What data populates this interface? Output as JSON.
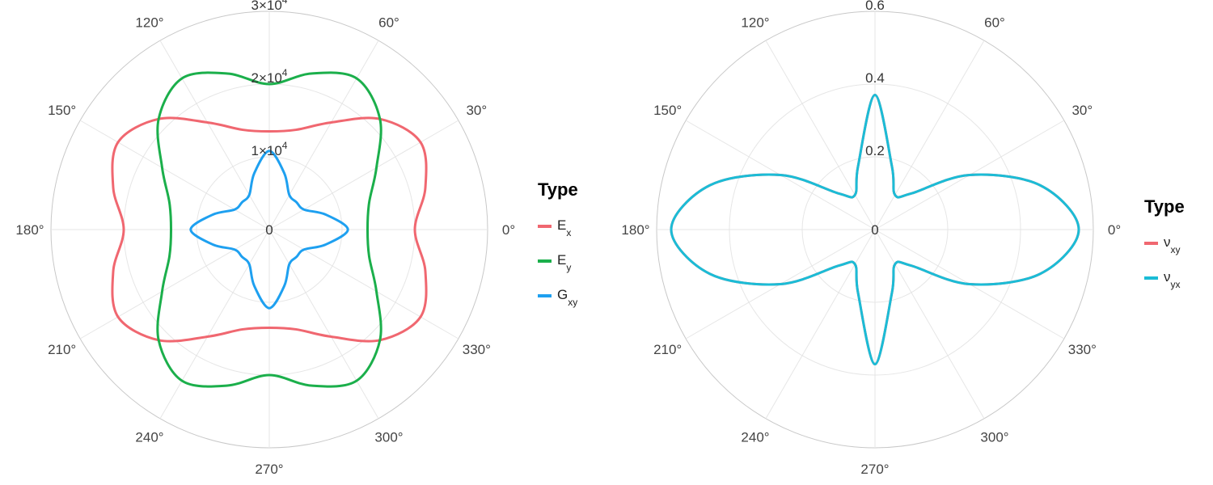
{
  "chart_data": [
    {
      "type": "line",
      "coord": "polar",
      "angle_labels": [
        "0°",
        "30°",
        "60°",
        "90°",
        "120°",
        "150°",
        "180°",
        "210°",
        "240°",
        "270°",
        "300°",
        "330°"
      ],
      "radial_ticks": [
        {
          "value": 0,
          "label": "0",
          "sup": ""
        },
        {
          "value": 10000,
          "label": "1×10",
          "sup": "4"
        },
        {
          "value": 20000,
          "label": "2×10",
          "sup": "4"
        },
        {
          "value": 30000,
          "label": "3×10",
          "sup": "4"
        }
      ],
      "rlim": [
        0,
        30000
      ],
      "grid": true,
      "legend": {
        "title": "Type",
        "position": "right",
        "entries": [
          {
            "main": "E",
            "sub": "x",
            "color": "#F06770"
          },
          {
            "main": "E",
            "sub": "y",
            "color": "#1BAF4B"
          },
          {
            "main": "G",
            "sub": "xy",
            "color": "#1EA0F0"
          }
        ]
      },
      "series": [
        {
          "name": "Ex",
          "color": "#F06770",
          "angle_deg": [
            0,
            15,
            30,
            45,
            60,
            75,
            90
          ],
          "r": [
            20000,
            22200,
            24000,
            21500,
            17000,
            14200,
            13500
          ]
        },
        {
          "name": "Ey",
          "color": "#1BAF4B",
          "angle_deg": [
            0,
            15,
            30,
            45,
            60,
            75,
            90
          ],
          "r": [
            13500,
            14200,
            17000,
            21500,
            24000,
            22200,
            20000
          ]
        },
        {
          "name": "Gxy",
          "color": "#1EA0F0",
          "angle_deg": [
            0,
            15,
            30,
            45,
            60,
            75,
            90
          ],
          "r": [
            10800,
            8000,
            5500,
            5300,
            5500,
            8000,
            10800
          ]
        }
      ]
    },
    {
      "type": "line",
      "coord": "polar",
      "angle_labels": [
        "0°",
        "30°",
        "60°",
        "90°",
        "120°",
        "150°",
        "180°",
        "210°",
        "240°",
        "270°",
        "300°",
        "330°"
      ],
      "radial_ticks": [
        {
          "value": 0,
          "label": "0",
          "sup": ""
        },
        {
          "value": 0.2,
          "label": "0.2",
          "sup": ""
        },
        {
          "value": 0.4,
          "label": "0.4",
          "sup": ""
        },
        {
          "value": 0.6,
          "label": "0.6",
          "sup": ""
        }
      ],
      "rlim": [
        0,
        0.6
      ],
      "grid": true,
      "legend": {
        "title": "Type",
        "position": "right",
        "entries": [
          {
            "main": "ν",
            "sub": "xy",
            "color": "#F06770"
          },
          {
            "main": "ν",
            "sub": "yx",
            "color": "#1BBCD6"
          }
        ]
      },
      "series": [
        {
          "name": "νxy",
          "color": "#F06770",
          "angle_deg": [
            0,
            15,
            30,
            45,
            60,
            75,
            90
          ],
          "r": [
            0.56,
            0.47,
            0.3,
            0.14,
            0.11,
            0.18,
            0.37
          ]
        },
        {
          "name": "νyx",
          "color": "#1BBCD6",
          "angle_deg": [
            0,
            15,
            30,
            45,
            60,
            75,
            90
          ],
          "r": [
            0.56,
            0.47,
            0.3,
            0.14,
            0.11,
            0.18,
            0.37
          ]
        }
      ]
    }
  ]
}
